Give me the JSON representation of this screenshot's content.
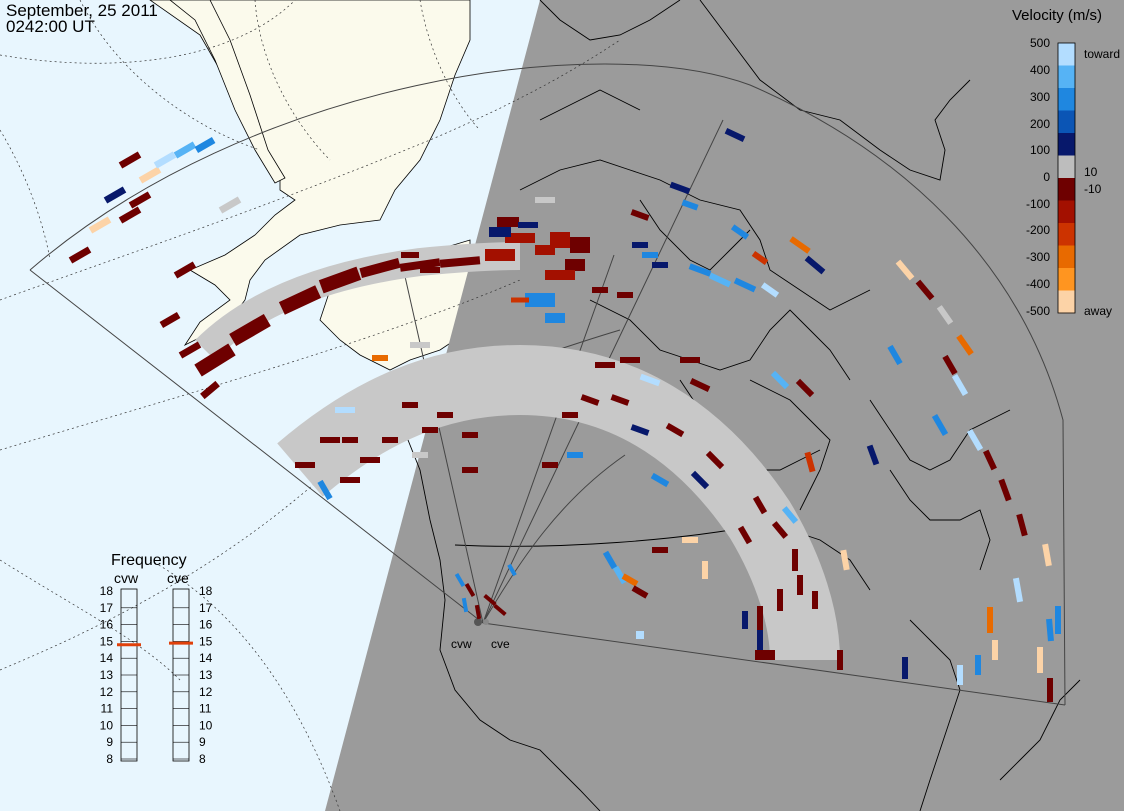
{
  "header": {
    "date": "September, 25 2011",
    "time": "0242:00 UT"
  },
  "legend": {
    "title": "Velocity (m/s)",
    "toward_label": "toward",
    "away_label": "away",
    "ticks": [
      "500",
      "400",
      "300",
      "200",
      "100",
      "10",
      "0",
      "-10",
      "-100",
      "-200",
      "-300",
      "-400",
      "-500"
    ],
    "colors": [
      "#b3ddff",
      "#56b3f5",
      "#1f87e0",
      "#0b55b5",
      "#07186b",
      "#bdbdbd",
      "#6e0000",
      "#a31000",
      "#cc3300",
      "#e86a00",
      "#ff9520",
      "#fcd3a7"
    ]
  },
  "frequency": {
    "title": "Frequency",
    "left_label": "cvw",
    "right_label": "cve",
    "scale": [
      "18",
      "17",
      "16",
      "15",
      "14",
      "13",
      "12",
      "11",
      "10",
      "9",
      "8"
    ],
    "cvw_freq_mhz": 14.8,
    "cve_freq_mhz": 14.9,
    "marker_color": "#e0400a"
  },
  "radars": {
    "west_label": "cvw",
    "east_label": "cve"
  },
  "colors": {
    "ocean": "#e8f6fe",
    "land_day": "#fbfaec",
    "night": "#9b9b9b",
    "ground_scatter": "#c8c8c8",
    "coast_line": "#000000"
  }
}
